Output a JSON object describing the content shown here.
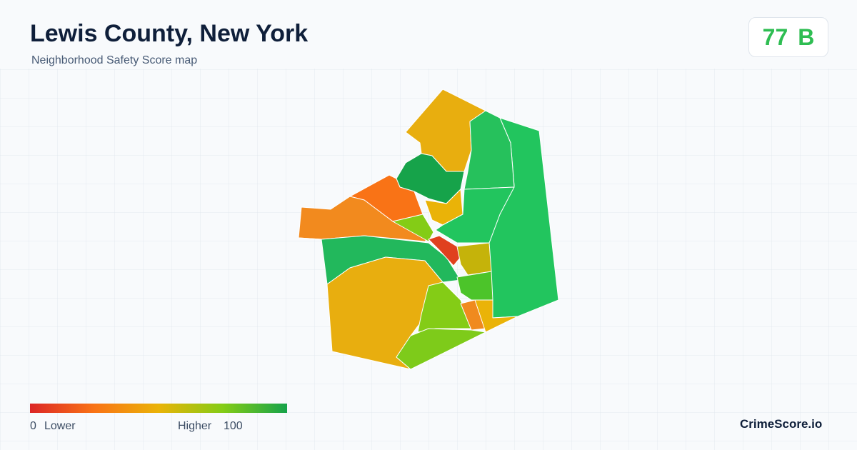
{
  "header": {
    "title": "Lewis County, New York",
    "subtitle": "Neighborhood Safety Score map"
  },
  "score": {
    "value": "77",
    "grade": "B"
  },
  "legend": {
    "min": "0",
    "min_label": "Lower",
    "max_label": "Higher",
    "max": "100"
  },
  "footer": {
    "brand": "CrimeScore.io"
  }
}
